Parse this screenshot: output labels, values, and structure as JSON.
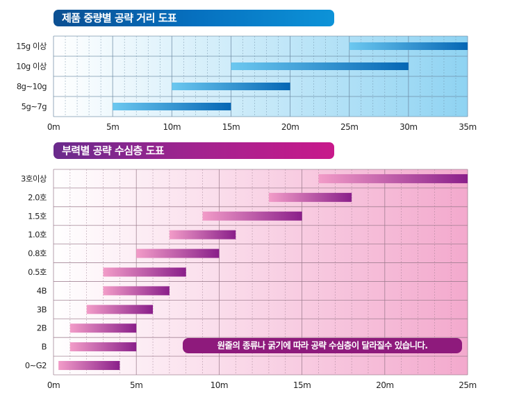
{
  "chart_data": [
    {
      "type": "bar",
      "orientation": "horizontal-range",
      "title": "제품 중량별 공략 거리 도표",
      "categories": [
        "15g 이상",
        "10g 이상",
        "8g~10g",
        "5g~7g"
      ],
      "series": [
        {
          "name": "공략 거리",
          "ranges": [
            [
              25,
              35
            ],
            [
              15,
              30
            ],
            [
              10,
              20
            ],
            [
              5,
              15
            ]
          ]
        }
      ],
      "xlim": [
        0,
        35
      ],
      "xticks": [
        0,
        5,
        10,
        15,
        20,
        25,
        30,
        35
      ],
      "xtick_labels": [
        "0m",
        "5m",
        "10m",
        "15m",
        "20m",
        "25m",
        "30m",
        "35m"
      ],
      "grid": true,
      "colors": {
        "bar_start": "#6cc8f0",
        "bar_end": "#0566b4",
        "bg_start": "#ffffff",
        "bg_end": "#8fd3f2",
        "grid": "#6b8aa3"
      }
    },
    {
      "type": "bar",
      "orientation": "horizontal-range",
      "title": "부력별 공략 수심층 도표",
      "categories": [
        "3호이상",
        "2.0호",
        "1.5호",
        "1.0호",
        "0.8호",
        "0.5호",
        "4B",
        "3B",
        "2B",
        "B",
        "0~G2"
      ],
      "series": [
        {
          "name": "공략 수심층",
          "ranges": [
            [
              16,
              25
            ],
            [
              13,
              18
            ],
            [
              9,
              15
            ],
            [
              7,
              11
            ],
            [
              5,
              10
            ],
            [
              3,
              8
            ],
            [
              3,
              7
            ],
            [
              2,
              6
            ],
            [
              1,
              5
            ],
            [
              1,
              5
            ],
            [
              0.3,
              4
            ]
          ]
        }
      ],
      "xlim": [
        0,
        25
      ],
      "xticks": [
        0,
        5,
        10,
        15,
        20,
        25
      ],
      "xtick_labels": [
        "0m",
        "5m",
        "10m",
        "15m",
        "20m",
        "25m"
      ],
      "grid": true,
      "annotation": "원줄의 종류나 굵기에 따라 공략 수심층이 달라질수 있습니다.",
      "colors": {
        "bar_start": "#f29cc8",
        "bar_end": "#8a1f8a",
        "bg_start": "#ffffff",
        "bg_end": "#f3a9cd",
        "grid": "#9a7a8c"
      }
    }
  ]
}
